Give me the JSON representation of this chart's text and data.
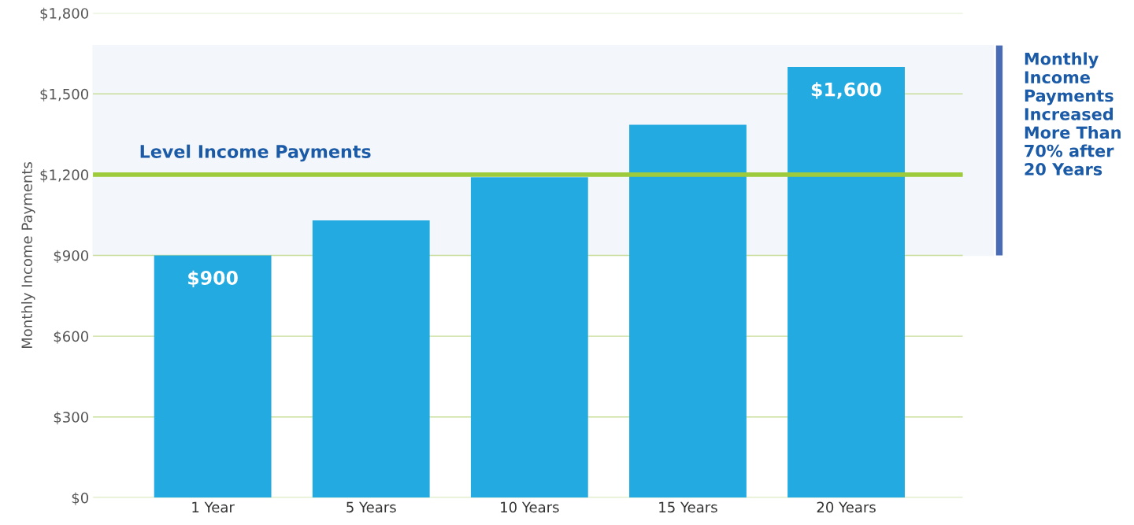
{
  "chart_data": {
    "type": "bar",
    "ylabel": "Monthly Income Payments",
    "categories": [
      "1 Year",
      "5 Years",
      "10 Years",
      "15 Years",
      "20 Years"
    ],
    "values": [
      900,
      1030,
      1190,
      1385,
      1600
    ],
    "color": "#22aae1",
    "value_labels": [
      "$900",
      null,
      null,
      null,
      "$1,600"
    ],
    "ylim": [
      0,
      1800
    ],
    "yticks": [
      {
        "value": 0,
        "label": "$0"
      },
      {
        "value": 300,
        "label": "$300"
      },
      {
        "value": 600,
        "label": "$600"
      },
      {
        "value": 900,
        "label": "$900"
      },
      {
        "value": 1200,
        "label": "$1,200"
      },
      {
        "value": 1500,
        "label": "$1,500"
      },
      {
        "value": 1800,
        "label": "$1,800"
      }
    ],
    "grid": "y",
    "ref_lines": [
      {
        "axis": "y",
        "value": 1200,
        "label": "Level Income Payments",
        "color": "#9dcb3b",
        "line_style": "solid"
      }
    ],
    "bands": [
      {
        "axis": "y",
        "from": 900,
        "to": 1680,
        "label": "Monthly Income Payments Increased More Than 70% after 20 Years",
        "color": "#f3f6fb"
      }
    ]
  }
}
